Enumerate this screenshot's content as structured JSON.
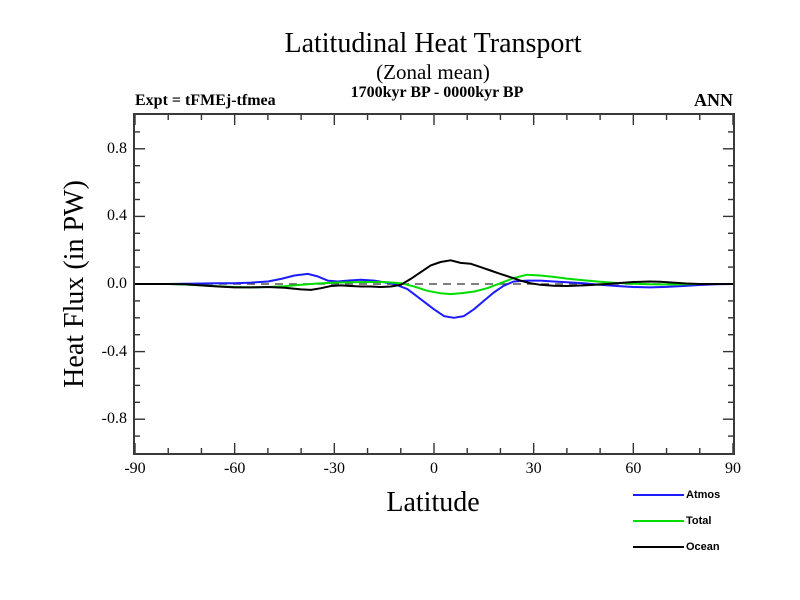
{
  "header": {
    "title": "Latitudinal Heat Transport",
    "subtitle": "(Zonal mean)",
    "period": "1700kyr BP - 0000kyr BP",
    "experiment": "Expt = tFMEj-tfmea",
    "season": "ANN"
  },
  "colors": {
    "axis": "#3a3a3a",
    "tick": "#333333",
    "zero_line": "#555555",
    "background": "#ffffff"
  },
  "chart_data": {
    "type": "line",
    "title": "Latitudinal Heat Transport",
    "subtitle": "(Zonal mean)",
    "period": "1700kyr BP - 0000kyr BP",
    "annotation_left": "Expt = tFMEj-tfmea",
    "annotation_right": "ANN",
    "xlabel": "Latitude",
    "ylabel": "Heat Flux (in PW)",
    "xlim": [
      -90,
      90
    ],
    "ylim": [
      -1.0,
      1.0
    ],
    "grid": false,
    "zero_line": {
      "value": 0,
      "style": "dashed"
    },
    "x_major_ticks": [
      -90,
      -60,
      -30,
      0,
      30,
      60,
      90
    ],
    "x_tick_labels": [
      "-90",
      "-60",
      "-30",
      "0",
      "30",
      "60",
      "90"
    ],
    "x_minor_step": 10,
    "y_major_ticks": [
      0.8,
      0.4,
      0.0,
      -0.4,
      -0.8
    ],
    "y_tick_labels": [
      "0.8",
      "0.4",
      "0.0",
      "-0.4",
      "-0.8"
    ],
    "y_minor_step": 0.1,
    "legend_position": "bottom-right",
    "series": [
      {
        "name": "Atmos",
        "color": "#1c1cff",
        "points": [
          [
            -90,
            0
          ],
          [
            -85,
            0
          ],
          [
            -80,
            0
          ],
          [
            -75,
            0.002
          ],
          [
            -70,
            0.003
          ],
          [
            -65,
            0.004
          ],
          [
            -60,
            0.005
          ],
          [
            -55,
            0.008
          ],
          [
            -50,
            0.015
          ],
          [
            -46,
            0.03
          ],
          [
            -42,
            0.05
          ],
          [
            -38,
            0.06
          ],
          [
            -35,
            0.045
          ],
          [
            -32,
            0.02
          ],
          [
            -29,
            0.015
          ],
          [
            -26,
            0.02
          ],
          [
            -22,
            0.025
          ],
          [
            -18,
            0.02
          ],
          [
            -15,
            0.01
          ],
          [
            -12,
            0
          ],
          [
            -8,
            -0.03
          ],
          [
            -4,
            -0.09
          ],
          [
            0,
            -0.15
          ],
          [
            3,
            -0.19
          ],
          [
            6,
            -0.2
          ],
          [
            9,
            -0.19
          ],
          [
            12,
            -0.15
          ],
          [
            15,
            -0.1
          ],
          [
            18,
            -0.05
          ],
          [
            21,
            -0.01
          ],
          [
            24,
            0.015
          ],
          [
            28,
            0.02
          ],
          [
            32,
            0.02
          ],
          [
            36,
            0.015
          ],
          [
            40,
            0.01
          ],
          [
            45,
            0.005
          ],
          [
            50,
            -0.005
          ],
          [
            55,
            -0.012
          ],
          [
            60,
            -0.018
          ],
          [
            65,
            -0.02
          ],
          [
            70,
            -0.017
          ],
          [
            75,
            -0.012
          ],
          [
            80,
            -0.006
          ],
          [
            85,
            -0.002
          ],
          [
            90,
            0
          ]
        ]
      },
      {
        "name": "Total",
        "color": "#00dd00",
        "points": [
          [
            -90,
            0
          ],
          [
            -85,
            0
          ],
          [
            -80,
            0
          ],
          [
            -75,
            -0.003
          ],
          [
            -70,
            -0.008
          ],
          [
            -65,
            -0.013
          ],
          [
            -60,
            -0.018
          ],
          [
            -55,
            -0.02
          ],
          [
            -50,
            -0.018
          ],
          [
            -45,
            -0.013
          ],
          [
            -40,
            -0.005
          ],
          [
            -35,
            0.003
          ],
          [
            -30,
            0.008
          ],
          [
            -25,
            0.01
          ],
          [
            -20,
            0.012
          ],
          [
            -15,
            0.012
          ],
          [
            -10,
            0.005
          ],
          [
            -6,
            -0.015
          ],
          [
            -2,
            -0.04
          ],
          [
            2,
            -0.055
          ],
          [
            5,
            -0.06
          ],
          [
            8,
            -0.055
          ],
          [
            12,
            -0.045
          ],
          [
            16,
            -0.025
          ],
          [
            20,
            0.005
          ],
          [
            24,
            0.035
          ],
          [
            28,
            0.055
          ],
          [
            32,
            0.05
          ],
          [
            36,
            0.042
          ],
          [
            40,
            0.032
          ],
          [
            45,
            0.022
          ],
          [
            50,
            0.013
          ],
          [
            55,
            0.006
          ],
          [
            60,
            0.002
          ],
          [
            65,
            -0.002
          ],
          [
            70,
            -0.003
          ],
          [
            75,
            -0.002
          ],
          [
            80,
            0
          ],
          [
            85,
            0
          ],
          [
            90,
            0
          ]
        ]
      },
      {
        "name": "Ocean",
        "color": "#000000",
        "points": [
          [
            -90,
            0
          ],
          [
            -85,
            0
          ],
          [
            -80,
            0
          ],
          [
            -75,
            -0.002
          ],
          [
            -70,
            -0.008
          ],
          [
            -65,
            -0.015
          ],
          [
            -60,
            -0.02
          ],
          [
            -55,
            -0.02
          ],
          [
            -50,
            -0.018
          ],
          [
            -45,
            -0.022
          ],
          [
            -40,
            -0.032
          ],
          [
            -37,
            -0.035
          ],
          [
            -34,
            -0.025
          ],
          [
            -31,
            -0.012
          ],
          [
            -28,
            -0.008
          ],
          [
            -25,
            -0.012
          ],
          [
            -22,
            -0.015
          ],
          [
            -19,
            -0.015
          ],
          [
            -16,
            -0.018
          ],
          [
            -13,
            -0.015
          ],
          [
            -10,
            -0.005
          ],
          [
            -7,
            0.03
          ],
          [
            -4,
            0.07
          ],
          [
            -1,
            0.11
          ],
          [
            2,
            0.13
          ],
          [
            5,
            0.14
          ],
          [
            8,
            0.125
          ],
          [
            11,
            0.12
          ],
          [
            14,
            0.1
          ],
          [
            17,
            0.08
          ],
          [
            20,
            0.06
          ],
          [
            23,
            0.04
          ],
          [
            26,
            0.02
          ],
          [
            29,
            0.005
          ],
          [
            32,
            -0.005
          ],
          [
            36,
            -0.01
          ],
          [
            40,
            -0.012
          ],
          [
            45,
            -0.008
          ],
          [
            50,
            -0.003
          ],
          [
            55,
            0.005
          ],
          [
            60,
            0.012
          ],
          [
            65,
            0.015
          ],
          [
            68,
            0.013
          ],
          [
            72,
            0.008
          ],
          [
            76,
            0.003
          ],
          [
            80,
            0
          ],
          [
            85,
            0
          ],
          [
            90,
            0
          ]
        ]
      }
    ]
  }
}
